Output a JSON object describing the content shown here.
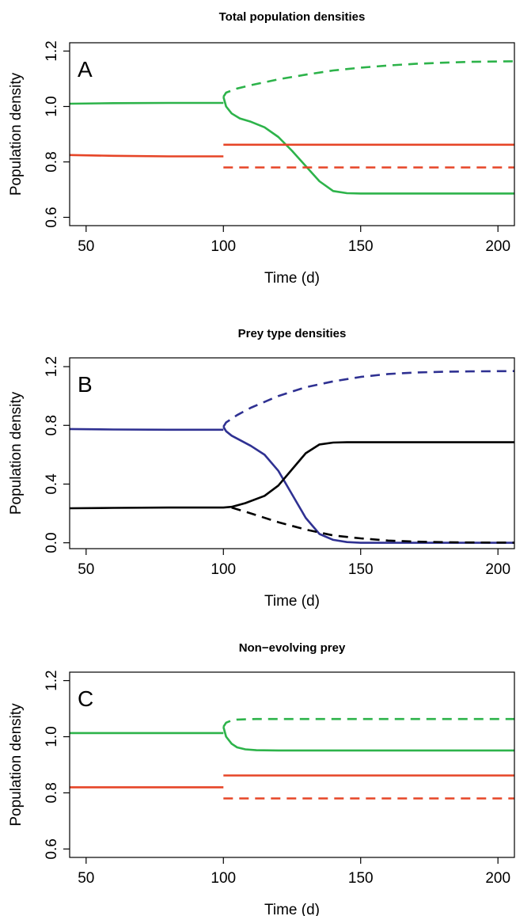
{
  "chart_data": [
    {
      "type": "line",
      "panel_letter": "A",
      "title": "Total population densities",
      "xlabel": "Time (d)",
      "ylabel": "Population density",
      "xlim": [
        44,
        206
      ],
      "ylim": [
        0.57,
        1.23
      ],
      "x_ticks": [
        50,
        100,
        150,
        200
      ],
      "y_ticks": [
        0.6,
        0.8,
        1.0,
        1.2
      ],
      "x_tick_labels": [
        "50",
        "100",
        "150",
        "200"
      ],
      "y_tick_labels": [
        "0.6",
        "0.8",
        "1.0",
        "1.2"
      ],
      "grid": false,
      "series": [
        {
          "color": "#2db34a",
          "dash": false,
          "x": [
            44,
            60,
            80,
            100
          ],
          "y": [
            1.01,
            1.012,
            1.013,
            1.013
          ]
        },
        {
          "color": "#2db34a",
          "dash": false,
          "x": [
            100,
            101,
            103,
            106,
            110,
            115,
            120,
            125,
            130,
            135,
            140,
            145,
            150,
            160,
            170,
            180,
            190,
            206
          ],
          "y": [
            1.035,
            1.0,
            0.975,
            0.957,
            0.945,
            0.925,
            0.89,
            0.84,
            0.785,
            0.73,
            0.695,
            0.687,
            0.686,
            0.686,
            0.686,
            0.686,
            0.686,
            0.686
          ]
        },
        {
          "color": "#2db34a",
          "dash": true,
          "x": [
            100,
            101,
            105,
            110,
            120,
            130,
            140,
            150,
            160,
            170,
            180,
            190,
            206
          ],
          "y": [
            1.035,
            1.05,
            1.065,
            1.077,
            1.098,
            1.115,
            1.13,
            1.14,
            1.148,
            1.154,
            1.158,
            1.161,
            1.163
          ]
        },
        {
          "color": "#e64527",
          "dash": false,
          "x": [
            44,
            60,
            80,
            100
          ],
          "y": [
            0.825,
            0.822,
            0.82,
            0.82
          ]
        },
        {
          "color": "#e64527",
          "dash": false,
          "x": [
            100,
            206
          ],
          "y": [
            0.862,
            0.862
          ]
        },
        {
          "color": "#e64527",
          "dash": true,
          "x": [
            100,
            206
          ],
          "y": [
            0.78,
            0.78
          ]
        }
      ]
    },
    {
      "type": "line",
      "panel_letter": "B",
      "title": "Prey type densities",
      "xlabel": "Time (d)",
      "ylabel": "Population density",
      "xlim": [
        44,
        206
      ],
      "ylim": [
        -0.04,
        1.26
      ],
      "x_ticks": [
        50,
        100,
        150,
        200
      ],
      "y_ticks": [
        0.0,
        0.4,
        0.8,
        1.2
      ],
      "x_tick_labels": [
        "50",
        "100",
        "150",
        "200"
      ],
      "y_tick_labels": [
        "0.0",
        "0.4",
        "0.8",
        "1.2"
      ],
      "grid": false,
      "series": [
        {
          "color": "#2f3192",
          "dash": false,
          "x": [
            44,
            60,
            80,
            100
          ],
          "y": [
            0.775,
            0.772,
            0.77,
            0.77
          ]
        },
        {
          "color": "#2f3192",
          "dash": false,
          "x": [
            100,
            101,
            103,
            106,
            110,
            115,
            120,
            125,
            130,
            135,
            140,
            145,
            150,
            160,
            170,
            180,
            206
          ],
          "y": [
            0.79,
            0.76,
            0.73,
            0.7,
            0.66,
            0.6,
            0.49,
            0.33,
            0.17,
            0.06,
            0.02,
            0.005,
            0.0,
            0.0,
            0.0,
            0.0,
            0.0
          ]
        },
        {
          "color": "#2f3192",
          "dash": true,
          "x": [
            100,
            101,
            105,
            110,
            120,
            130,
            140,
            150,
            160,
            170,
            180,
            190,
            206
          ],
          "y": [
            0.79,
            0.82,
            0.87,
            0.92,
            1.0,
            1.06,
            1.1,
            1.13,
            1.15,
            1.16,
            1.165,
            1.168,
            1.17
          ]
        },
        {
          "color": "#000000",
          "dash": false,
          "x": [
            44,
            60,
            80,
            100,
            103,
            108,
            115,
            120,
            125,
            130,
            135,
            140,
            145,
            150,
            206
          ],
          "y": [
            0.235,
            0.238,
            0.24,
            0.24,
            0.245,
            0.27,
            0.32,
            0.39,
            0.5,
            0.61,
            0.67,
            0.683,
            0.685,
            0.685,
            0.685
          ]
        },
        {
          "color": "#000000",
          "dash": true,
          "x": [
            103,
            110,
            120,
            130,
            140,
            150,
            160,
            170,
            180,
            190,
            206
          ],
          "y": [
            0.24,
            0.2,
            0.14,
            0.09,
            0.05,
            0.03,
            0.015,
            0.008,
            0.004,
            0.002,
            0.001
          ]
        }
      ]
    },
    {
      "type": "line",
      "panel_letter": "C",
      "title": "Non−evolving prey",
      "xlabel": "Time (d)",
      "ylabel": "Population density",
      "xlim": [
        44,
        206
      ],
      "ylim": [
        0.57,
        1.23
      ],
      "x_ticks": [
        50,
        100,
        150,
        200
      ],
      "y_ticks": [
        0.6,
        0.8,
        1.0,
        1.2
      ],
      "x_tick_labels": [
        "50",
        "100",
        "150",
        "200"
      ],
      "y_tick_labels": [
        "0.6",
        "0.8",
        "1.0",
        "1.2"
      ],
      "grid": false,
      "series": [
        {
          "color": "#2db34a",
          "dash": false,
          "x": [
            44,
            100
          ],
          "y": [
            1.013,
            1.013
          ]
        },
        {
          "color": "#2db34a",
          "dash": false,
          "x": [
            100,
            101,
            103,
            105,
            108,
            112,
            120,
            206
          ],
          "y": [
            1.035,
            1.0,
            0.975,
            0.962,
            0.955,
            0.952,
            0.951,
            0.951
          ]
        },
        {
          "color": "#2db34a",
          "dash": true,
          "x": [
            100,
            101,
            103,
            105,
            108,
            112,
            120,
            206
          ],
          "y": [
            1.035,
            1.05,
            1.058,
            1.061,
            1.062,
            1.063,
            1.063,
            1.063
          ]
        },
        {
          "color": "#e64527",
          "dash": false,
          "x": [
            44,
            100
          ],
          "y": [
            0.82,
            0.82
          ]
        },
        {
          "color": "#e64527",
          "dash": false,
          "x": [
            100,
            206
          ],
          "y": [
            0.862,
            0.862
          ]
        },
        {
          "color": "#e64527",
          "dash": true,
          "x": [
            100,
            206
          ],
          "y": [
            0.78,
            0.78
          ]
        }
      ]
    }
  ]
}
